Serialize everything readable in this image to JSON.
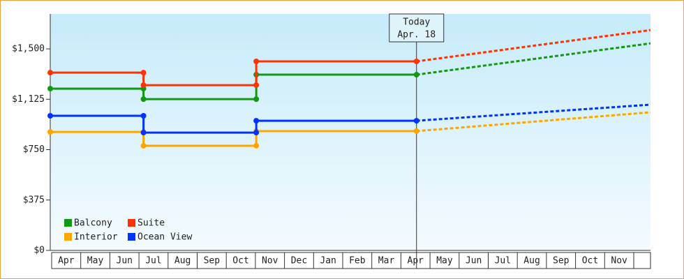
{
  "chart_data": {
    "type": "step-line",
    "categories": [
      "Apr",
      "May",
      "Jun",
      "Jul",
      "Aug",
      "Sep",
      "Oct",
      "Nov",
      "Dec",
      "Jan",
      "Feb",
      "Mar",
      "Apr",
      "May",
      "Jun",
      "Jul",
      "Aug",
      "Sep",
      "Oct",
      "Nov"
    ],
    "xlim": [
      0,
      20.6
    ],
    "ylim": [
      0,
      1760
    ],
    "yticks": [
      {
        "value": 0,
        "label": "$0"
      },
      {
        "value": 375,
        "label": "$375"
      },
      {
        "value": 750,
        "label": "$750"
      },
      {
        "value": 1125,
        "label": "$1,125"
      },
      {
        "value": 1500,
        "label": "$1,500"
      }
    ],
    "annotation": {
      "x": 12.57,
      "lines": [
        "Today",
        "Apr. 18"
      ]
    },
    "forecast_x": 20.6,
    "legend": "bottom-left",
    "series": [
      {
        "name": "Balcony",
        "color": "#119911",
        "x": [
          0,
          3.2,
          7.07
        ],
        "values": [
          1204,
          1126,
          1308
        ],
        "forecast": 1541
      },
      {
        "name": "Suite",
        "color": "#ff3300",
        "x": [
          0,
          3.2,
          7.07
        ],
        "values": [
          1323,
          1230,
          1407
        ],
        "forecast": 1640
      },
      {
        "name": "Interior",
        "color": "#ffa500",
        "x": [
          0,
          3.2,
          7.07
        ],
        "values": [
          882,
          779,
          888
        ],
        "forecast": 1028
      },
      {
        "name": "Ocean View",
        "color": "#0033ff",
        "x": [
          0,
          3.2,
          7.07
        ],
        "values": [
          1002,
          877,
          965
        ],
        "forecast": 1085
      }
    ]
  }
}
